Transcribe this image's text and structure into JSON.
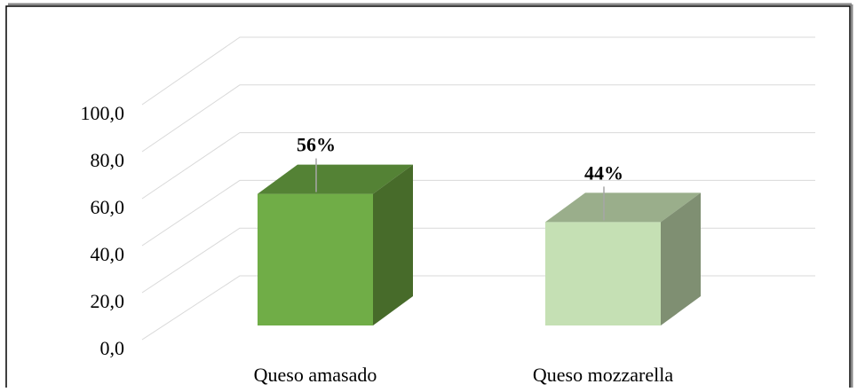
{
  "chart_data": {
    "type": "bar3d",
    "categories": [
      "Queso amasado",
      "Queso mozzarella"
    ],
    "series": [
      {
        "values": [
          56,
          44
        ],
        "value_labels": [
          "56%",
          "44%"
        ],
        "colors": [
          [
            "#70ad47",
            "#548235",
            "#476b2a"
          ],
          [
            "#c5e0b4",
            "#9aae8b",
            "#7f8f72"
          ]
        ]
      }
    ],
    "ylim": [
      0,
      100
    ],
    "yticks": [
      {
        "value": 0,
        "label": "0,0"
      },
      {
        "value": 20,
        "label": "20,0"
      },
      {
        "value": 40,
        "label": "40,0"
      },
      {
        "value": 60,
        "label": "60,0"
      },
      {
        "value": 80,
        "label": "80,0"
      },
      {
        "value": 100,
        "label": "100,0"
      }
    ],
    "grid": true
  }
}
